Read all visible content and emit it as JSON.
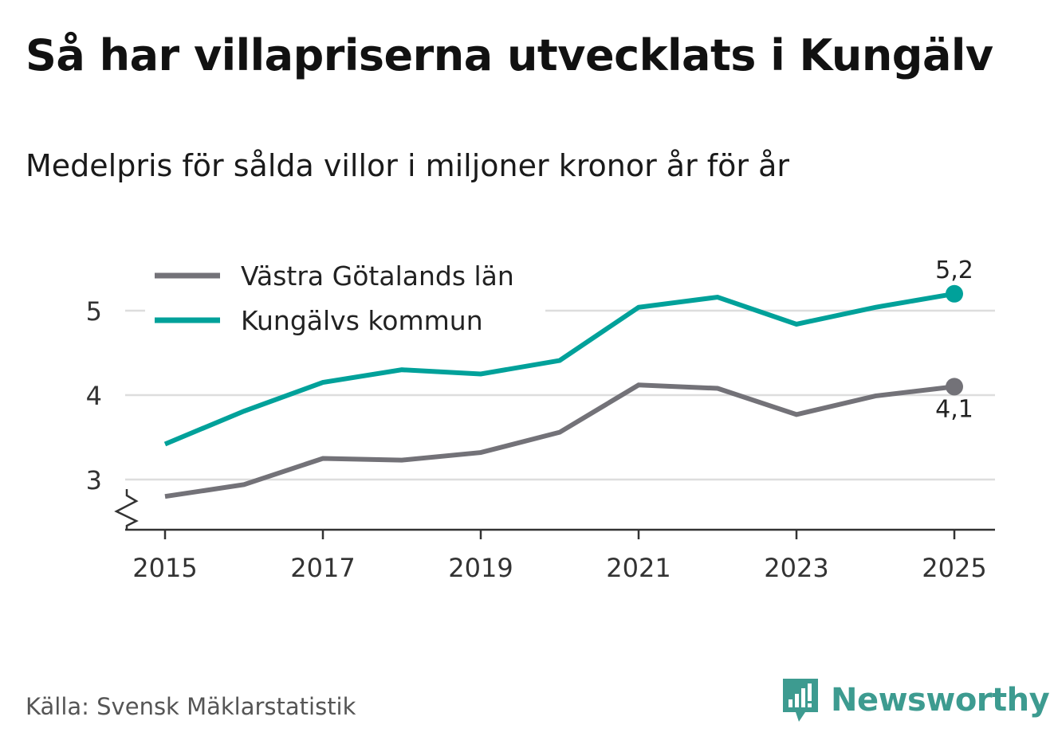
{
  "title": "Så har villapriserna utvecklats i Kungälv",
  "subtitle": "Medelpris för sålda villor i miljoner kronor år för år",
  "source": "Källa: Svensk Mäklarstatistik",
  "brand": {
    "name": "Newsworthy",
    "logo_icon": "bar-chart-bubble-icon",
    "color": "#3d9b90"
  },
  "colors": {
    "grid": "#dddddd",
    "axis": "#333333"
  },
  "chart_data": {
    "type": "line",
    "x": [
      2015,
      2016,
      2017,
      2018,
      2019,
      2020,
      2021,
      2022,
      2023,
      2024,
      2025
    ],
    "x_ticks": [
      "2015",
      "2017",
      "2019",
      "2021",
      "2023",
      "2025"
    ],
    "y_ticks": [
      "3",
      "4",
      "5"
    ],
    "ylim": [
      2.4,
      5.4
    ],
    "axis_break": true,
    "legend_position": "top-left",
    "series": [
      {
        "name": "Västra Götalands län",
        "color": "#737278",
        "values": [
          2.8,
          2.94,
          3.25,
          3.23,
          3.32,
          3.56,
          4.12,
          4.08,
          3.77,
          3.99,
          4.1
        ],
        "end_label": "4,1"
      },
      {
        "name": "Kungälvs kommun",
        "color": "#00a19a",
        "values": [
          3.42,
          3.81,
          4.15,
          4.3,
          4.25,
          4.41,
          5.04,
          5.16,
          4.84,
          5.04,
          5.2
        ],
        "end_label": "5,2"
      }
    ]
  }
}
